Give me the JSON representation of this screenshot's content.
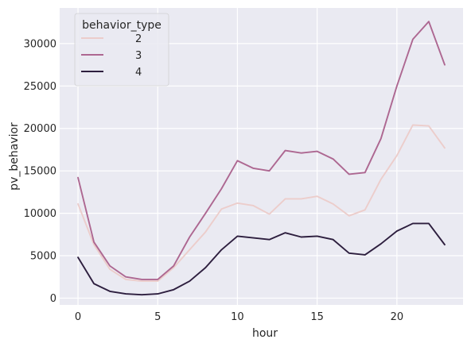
{
  "chart_data": {
    "type": "line",
    "xlabel": "hour",
    "ylabel": "pv_behavior",
    "xlim": [
      -1.15,
      24.15
    ],
    "ylim": [
      -800,
      34200
    ],
    "xticks": [
      0,
      5,
      10,
      15,
      20
    ],
    "yticks": [
      0,
      5000,
      10000,
      15000,
      20000,
      25000,
      30000
    ],
    "grid": true,
    "legend": {
      "title": "behavior_type",
      "placement": "top-left"
    },
    "x": [
      0,
      1,
      2,
      3,
      4,
      5,
      6,
      7,
      8,
      9,
      10,
      11,
      12,
      13,
      14,
      15,
      16,
      17,
      18,
      19,
      20,
      21,
      22,
      23
    ],
    "series": [
      {
        "name": "2",
        "color": "#eccdcb",
        "values": [
          11100,
          6300,
          3400,
          2200,
          2000,
          2000,
          3600,
          5700,
          7800,
          10500,
          11200,
          10900,
          9900,
          11700,
          11700,
          12000,
          11100,
          9700,
          10400,
          14000,
          16800,
          20400,
          20300,
          17700
        ]
      },
      {
        "name": "3",
        "color": "#ad6791",
        "values": [
          14200,
          6600,
          3800,
          2500,
          2200,
          2200,
          3800,
          7200,
          10000,
          12900,
          16200,
          15300,
          15000,
          17400,
          17100,
          17300,
          16400,
          14600,
          14800,
          18800,
          25000,
          30500,
          32600,
          27500
        ]
      },
      {
        "name": "4",
        "color": "#2d1e3e",
        "values": [
          4800,
          1700,
          800,
          500,
          400,
          500,
          1000,
          2000,
          3600,
          5700,
          7300,
          7100,
          6900,
          7700,
          7200,
          7300,
          6900,
          5300,
          5100,
          6400,
          7900,
          8800,
          8800,
          6300
        ]
      }
    ]
  }
}
